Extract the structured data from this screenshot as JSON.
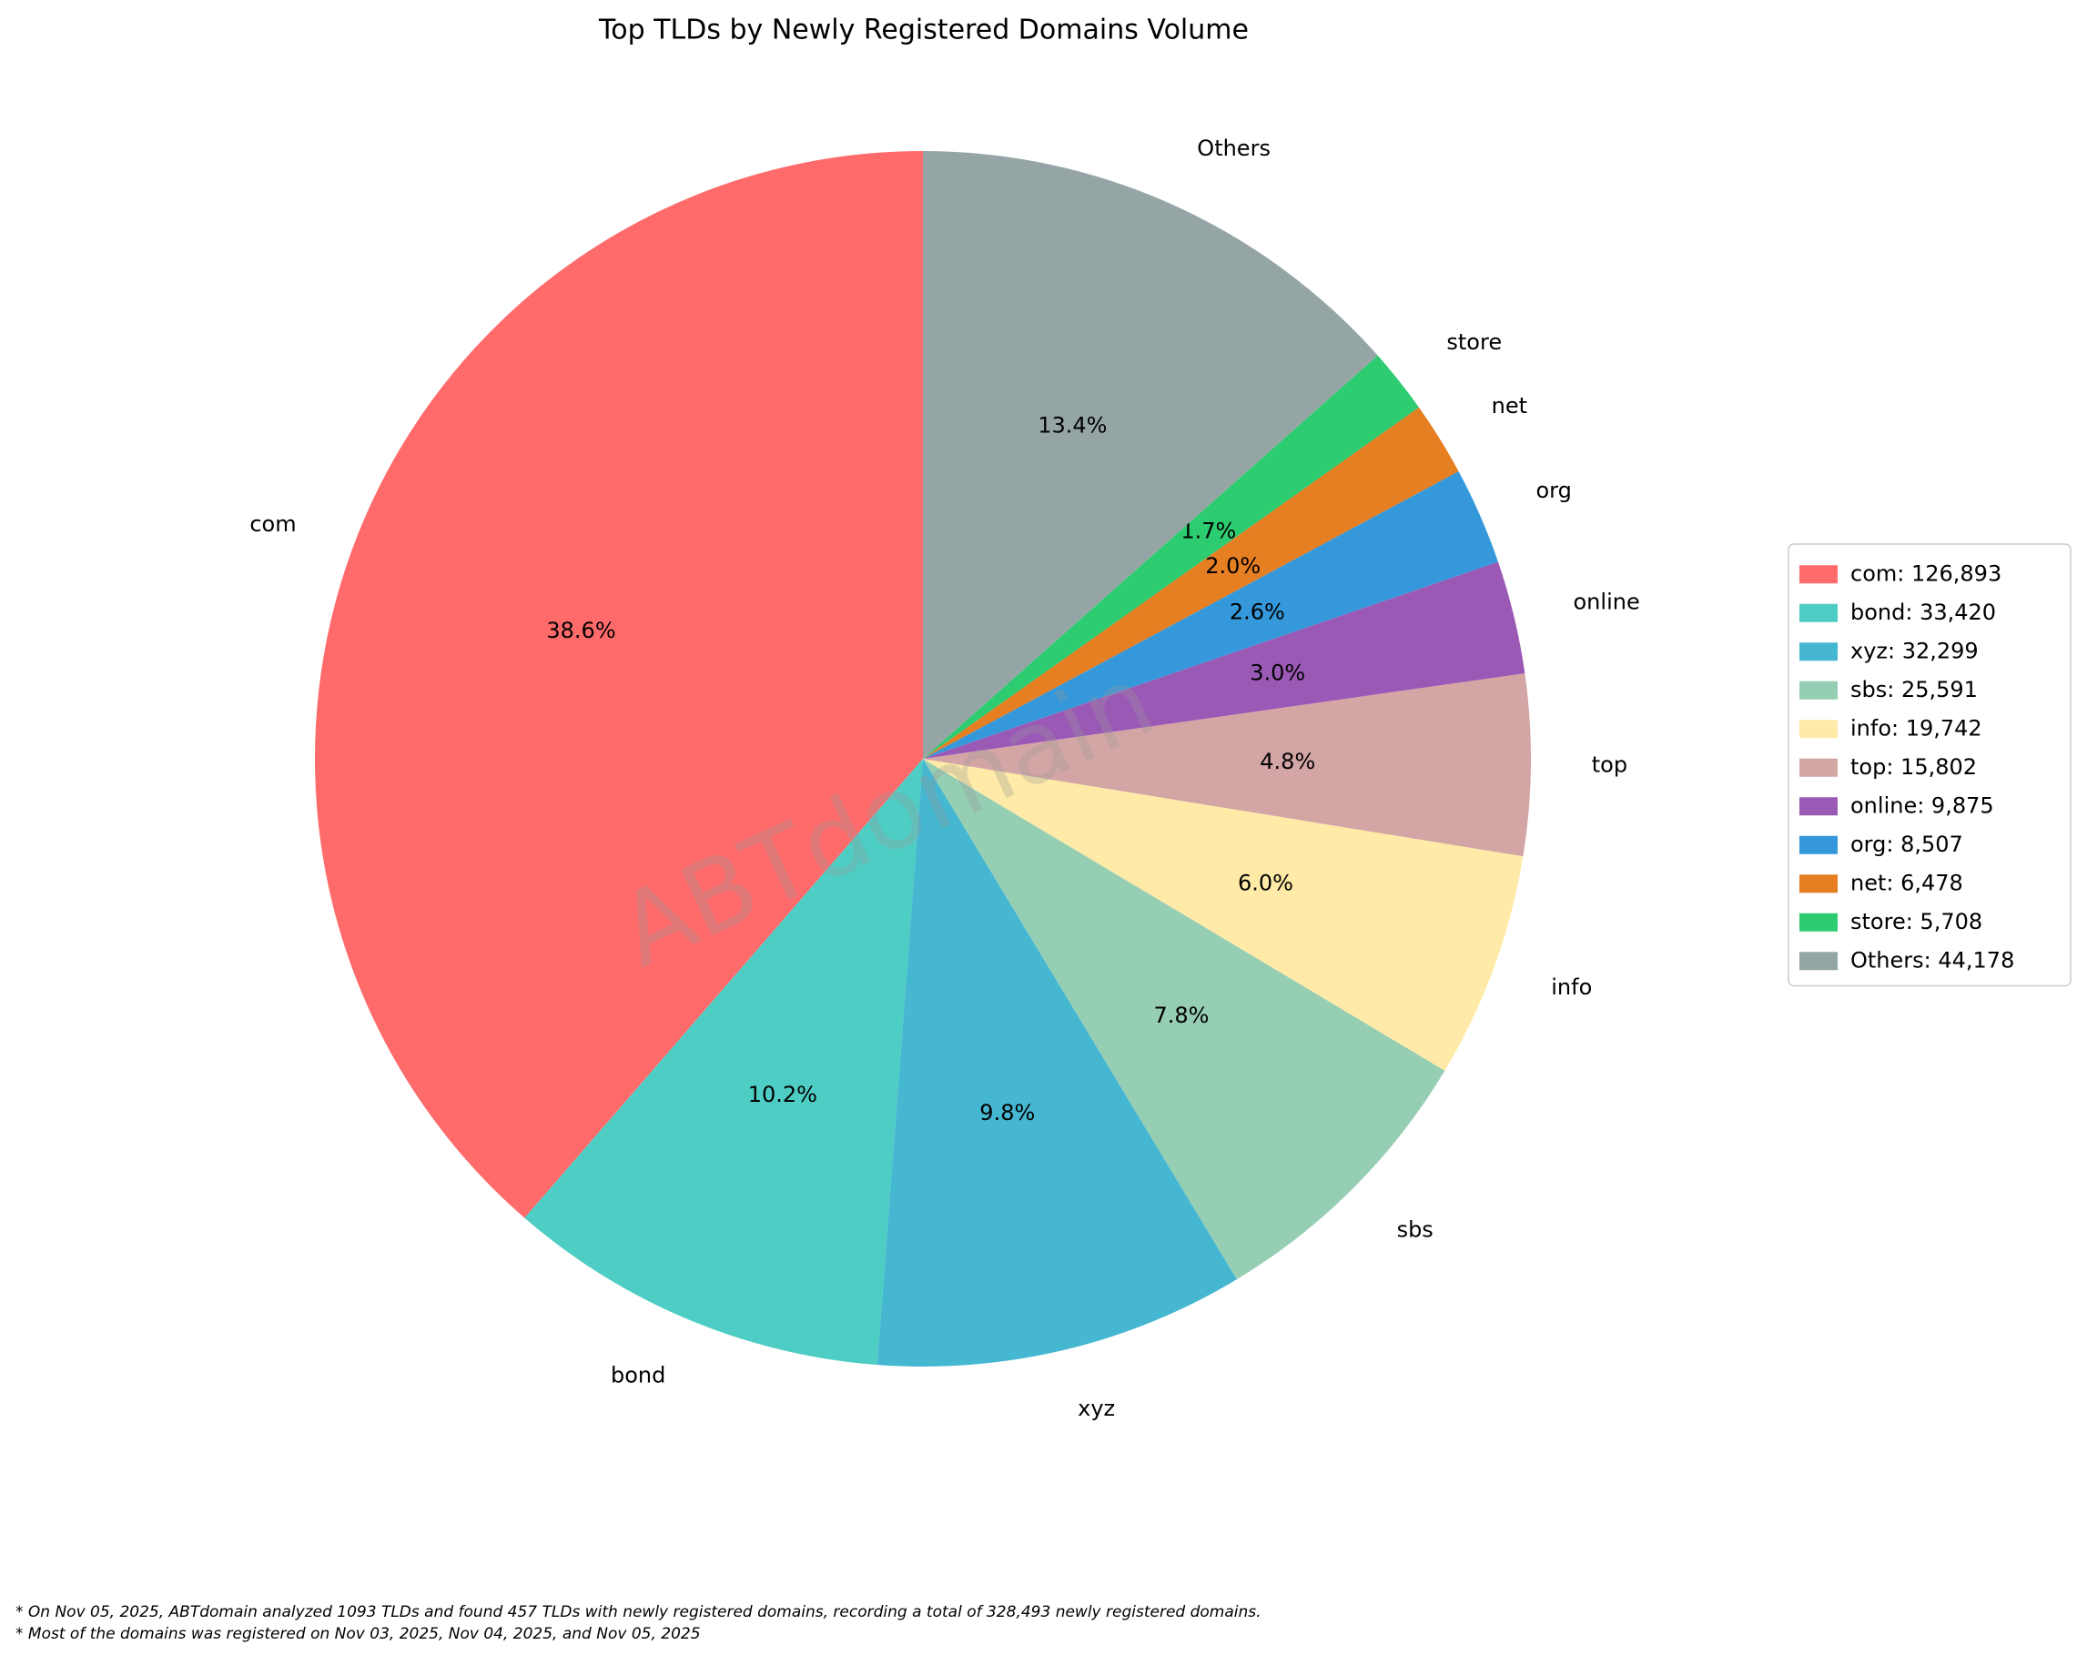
{
  "chart_data": {
    "type": "pie",
    "title": "Top TLDs by Newly Registered Domains Volume",
    "categories": [
      "com",
      "bond",
      "xyz",
      "sbs",
      "info",
      "top",
      "online",
      "org",
      "net",
      "store",
      "Others"
    ],
    "values": [
      126893,
      33420,
      32299,
      25591,
      19742,
      15802,
      9875,
      8507,
      6478,
      5708,
      44178
    ],
    "colors": [
      "#ff6b6b",
      "#4ecdc4",
      "#45b7d1",
      "#96ceb4",
      "#ffeaa7",
      "#d4a5a5",
      "#9b59b6",
      "#3498db",
      "#e67e22",
      "#2ecc71",
      "#95a5a6"
    ],
    "percentages": [
      38.6,
      10.2,
      9.8,
      7.8,
      6.0,
      4.8,
      3.0,
      2.6,
      2.0,
      1.7,
      13.4
    ],
    "percentage_labels": [
      "38.6%",
      "10.2%",
      "9.8%",
      "7.8%",
      "6.0%",
      "4.8%",
      "3.0%",
      "2.6%",
      "2.0%",
      "1.7%",
      "13.4%"
    ],
    "legend_labels": [
      "com: 126,893",
      "bond: 33,420",
      "xyz: 32,299",
      "sbs: 25,591",
      "info: 19,742",
      "top: 15,802",
      "online: 9,875",
      "org: 8,507",
      "net: 6,478",
      "store: 5,708",
      "Others: 44,178"
    ],
    "legend_position": "right",
    "watermark": "ABTdomain",
    "notes": [
      "* On Nov 05, 2025, ABTdomain analyzed 1093 TLDs and found 457 TLDs with newly registered domains, recording a total of 328,493 newly registered domains.",
      "* Most of the domains was registered on Nov 03, 2025, Nov 04, 2025, and Nov 05, 2025"
    ]
  }
}
